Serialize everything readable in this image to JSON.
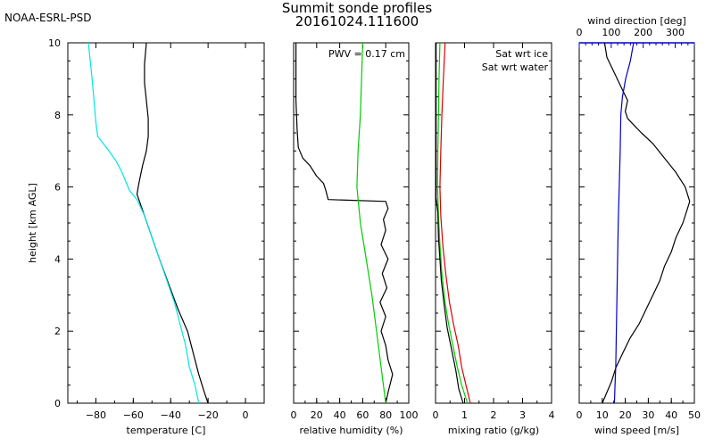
{
  "header": {
    "org": "NOAA-ESRL-PSD",
    "title": "Summit sonde profiles",
    "subtitle": "20161024.111600"
  },
  "chart_data": [
    {
      "type": "line",
      "panel": "temperature",
      "xlabel": "temperature [C]",
      "ylabel": "height [km AGL]",
      "xlim": [
        -95,
        10
      ],
      "ylim": [
        0,
        10
      ],
      "x_ticks": [
        -80,
        -60,
        -40,
        -20,
        0
      ],
      "y_ticks": [
        0,
        2,
        4,
        6,
        8,
        10
      ],
      "series": [
        {
          "color": "#000000",
          "points": [
            [
              -20,
              0.0
            ],
            [
              -22,
              0.3
            ],
            [
              -25,
              0.8
            ],
            [
              -28,
              1.4
            ],
            [
              -31,
              2.0
            ],
            [
              -36,
              2.6
            ],
            [
              -41,
              3.3
            ],
            [
              -46,
              4.0
            ],
            [
              -50,
              4.6
            ],
            [
              -54,
              5.2
            ],
            [
              -58,
              5.8
            ],
            [
              -57,
              6.1
            ],
            [
              -55,
              6.6
            ],
            [
              -53,
              7.0
            ],
            [
              -52,
              7.4
            ],
            [
              -52,
              7.9
            ],
            [
              -53,
              8.4
            ],
            [
              -54,
              8.9
            ],
            [
              -54,
              9.4
            ],
            [
              -53,
              10.0
            ]
          ]
        },
        {
          "color": "#00e5e5",
          "points": [
            [
              -25,
              0.0
            ],
            [
              -27,
              0.5
            ],
            [
              -30,
              1.0
            ],
            [
              -32,
              1.6
            ],
            [
              -35,
              2.2
            ],
            [
              -38,
              2.8
            ],
            [
              -42,
              3.4
            ],
            [
              -46,
              4.0
            ],
            [
              -50,
              4.6
            ],
            [
              -54,
              5.2
            ],
            [
              -58,
              5.65
            ],
            [
              -62,
              5.9
            ],
            [
              -66,
              6.4
            ],
            [
              -69,
              6.7
            ],
            [
              -73,
              7.0
            ],
            [
              -76,
              7.2
            ],
            [
              -79,
              7.4
            ],
            [
              -80,
              7.8
            ],
            [
              -81,
              8.4
            ],
            [
              -82,
              9.0
            ],
            [
              -83,
              9.5
            ],
            [
              -84,
              10.0
            ]
          ]
        }
      ]
    },
    {
      "type": "line",
      "panel": "relative humidity",
      "xlabel": "relative humidity (%)",
      "xlim": [
        0,
        100
      ],
      "ylim": [
        0,
        10
      ],
      "x_ticks": [
        0,
        20,
        40,
        60,
        80,
        100
      ],
      "annotation": "PWV = 0.17 cm",
      "series": [
        {
          "color": "#000000",
          "points": [
            [
              80,
              0.0
            ],
            [
              82,
              0.3
            ],
            [
              86,
              0.8
            ],
            [
              82,
              1.2
            ],
            [
              80,
              1.6
            ],
            [
              76,
              2.0
            ],
            [
              80,
              2.4
            ],
            [
              75,
              2.8
            ],
            [
              81,
              3.2
            ],
            [
              77,
              3.6
            ],
            [
              82,
              4.0
            ],
            [
              76,
              4.4
            ],
            [
              80,
              4.8
            ],
            [
              78,
              5.1
            ],
            [
              82,
              5.4
            ],
            [
              80,
              5.6
            ],
            [
              30,
              5.65
            ],
            [
              28,
              5.9
            ],
            [
              26,
              6.1
            ],
            [
              20,
              6.3
            ],
            [
              14,
              6.6
            ],
            [
              8,
              6.8
            ],
            [
              4,
              7.1
            ],
            [
              3,
              7.6
            ],
            [
              2,
              8.4
            ],
            [
              2,
              9.2
            ],
            [
              2,
              10.0
            ]
          ]
        },
        {
          "color": "#00cc00",
          "points": [
            [
              80,
              0.0
            ],
            [
              76,
              1.0
            ],
            [
              72,
              2.0
            ],
            [
              68,
              3.0
            ],
            [
              63,
              4.0
            ],
            [
              58,
              5.0
            ],
            [
              55,
              6.0
            ],
            [
              56,
              7.0
            ],
            [
              58,
              8.0
            ],
            [
              59,
              9.0
            ],
            [
              60,
              10.0
            ]
          ]
        }
      ]
    },
    {
      "type": "line",
      "panel": "mixing ratio",
      "xlabel": "mixing ratio (g/kg)",
      "xlim": [
        0,
        4
      ],
      "ylim": [
        0,
        10
      ],
      "x_ticks": [
        0,
        1,
        2,
        3,
        4
      ],
      "legend": [
        "Sat wrt ice",
        "Sat wrt water"
      ],
      "series": [
        {
          "name": "Sat wrt ice",
          "color": "#00cc00",
          "points": [
            [
              1.1,
              0.0
            ],
            [
              0.9,
              0.5
            ],
            [
              0.75,
              1.0
            ],
            [
              0.6,
              1.6
            ],
            [
              0.45,
              2.2
            ],
            [
              0.33,
              2.8
            ],
            [
              0.22,
              3.6
            ],
            [
              0.15,
              4.4
            ],
            [
              0.1,
              5.2
            ],
            [
              0.07,
              6.0
            ],
            [
              0.08,
              7.0
            ],
            [
              0.1,
              8.0
            ],
            [
              0.12,
              9.0
            ],
            [
              0.15,
              10.0
            ]
          ]
        },
        {
          "name": "Sat wrt water",
          "color": "#dd0000",
          "points": [
            [
              1.2,
              0.0
            ],
            [
              1.05,
              0.5
            ],
            [
              0.9,
              1.0
            ],
            [
              0.78,
              1.6
            ],
            [
              0.62,
              2.2
            ],
            [
              0.48,
              2.8
            ],
            [
              0.35,
              3.6
            ],
            [
              0.25,
              4.4
            ],
            [
              0.18,
              5.2
            ],
            [
              0.15,
              6.0
            ],
            [
              0.18,
              7.0
            ],
            [
              0.22,
              8.0
            ],
            [
              0.27,
              9.0
            ],
            [
              0.33,
              10.0
            ]
          ]
        },
        {
          "color": "#000000",
          "points": [
            [
              0.95,
              0.0
            ],
            [
              0.8,
              0.4
            ],
            [
              0.7,
              0.9
            ],
            [
              0.55,
              1.5
            ],
            [
              0.4,
              2.1
            ],
            [
              0.3,
              2.7
            ],
            [
              0.2,
              3.4
            ],
            [
              0.15,
              4.0
            ],
            [
              0.1,
              4.6
            ],
            [
              0.08,
              5.3
            ],
            [
              0.02,
              5.7
            ],
            [
              0.02,
              6.5
            ],
            [
              0.02,
              7.5
            ],
            [
              0.02,
              8.5
            ],
            [
              0.02,
              10.0
            ]
          ]
        }
      ]
    },
    {
      "type": "line",
      "panel": "wind",
      "xlabel": "wind speed [m/s]",
      "xlabel_top": "wind direction [deg]",
      "xlim": [
        0,
        50
      ],
      "xlim_top": [
        0,
        360
      ],
      "ylim": [
        0,
        10
      ],
      "x_ticks": [
        0,
        10,
        20,
        30,
        40,
        50
      ],
      "x_ticks_top": [
        0,
        100,
        200,
        300
      ],
      "top_axis_color": "#0000cc",
      "series": [
        {
          "axis": "bottom",
          "color": "#000000",
          "points": [
            [
              10,
              0.0
            ],
            [
              12,
              0.3
            ],
            [
              14,
              0.6
            ],
            [
              16,
              1.0
            ],
            [
              19,
              1.4
            ],
            [
              22,
              1.8
            ],
            [
              26,
              2.2
            ],
            [
              29,
              2.6
            ],
            [
              32,
              3.0
            ],
            [
              35,
              3.4
            ],
            [
              37,
              3.8
            ],
            [
              40,
              4.2
            ],
            [
              42,
              4.6
            ],
            [
              45,
              5.0
            ],
            [
              47,
              5.4
            ],
            [
              48,
              5.6
            ],
            [
              46,
              6.0
            ],
            [
              42,
              6.4
            ],
            [
              37,
              6.8
            ],
            [
              32,
              7.2
            ],
            [
              27,
              7.5
            ],
            [
              24,
              7.7
            ],
            [
              21,
              7.9
            ],
            [
              20,
              8.1
            ],
            [
              21,
              8.4
            ],
            [
              18,
              8.8
            ],
            [
              15,
              9.2
            ],
            [
              12,
              9.6
            ],
            [
              11,
              10.0
            ]
          ]
        },
        {
          "axis": "top",
          "color": "#0000cc",
          "points": [
            [
              110,
              0.0
            ],
            [
              112,
              0.5
            ],
            [
              114,
              1.0
            ],
            [
              116,
              2.0
            ],
            [
              118,
              3.0
            ],
            [
              120,
              4.0
            ],
            [
              122,
              5.0
            ],
            [
              125,
              6.0
            ],
            [
              128,
              7.0
            ],
            [
              130,
              8.0
            ],
            [
              135,
              8.5
            ],
            [
              145,
              9.0
            ],
            [
              160,
              9.5
            ],
            [
              170,
              10.0
            ]
          ]
        }
      ]
    }
  ]
}
